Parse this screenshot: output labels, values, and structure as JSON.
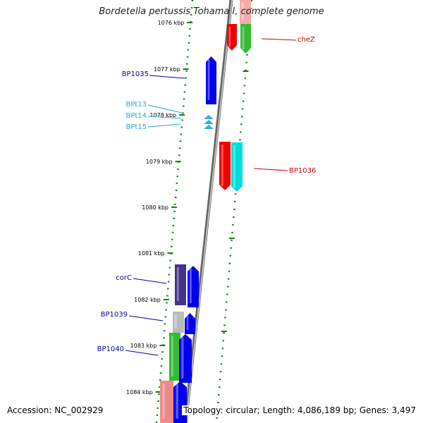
{
  "title": "Bordetella pertussis Tohama I, complete genome",
  "footer": {
    "accession": "Accession: NC_002929",
    "summary": "Topology: circular; Length: 4,086,189 bp; Genes: 3,497"
  },
  "map": {
    "ticks": [
      "1076 kbp",
      "1077 kbp",
      "1078 kbp",
      "1079 kbp",
      "1080 kbp",
      "1081 kbp",
      "1082 kbp",
      "1083 kbp",
      "1084 kbp"
    ],
    "labels": [
      {
        "text": "cheZ",
        "color": "#cc0000"
      },
      {
        "text": "BP1035",
        "color": "#0000aa"
      },
      {
        "text": "BPt13",
        "color": "#22aadd"
      },
      {
        "text": "BPt14",
        "color": "#22aadd"
      },
      {
        "text": "BPt15",
        "color": "#22aadd"
      },
      {
        "text": "BP1036",
        "color": "#cc0000"
      },
      {
        "text": "corC",
        "color": "#0000aa"
      },
      {
        "text": "BP1039",
        "color": "#0000aa"
      },
      {
        "text": "BP1040",
        "color": "#0000aa"
      }
    ],
    "colors": {
      "backbone": "#888888",
      "tick_marks": "#1a7a1a",
      "red": "#ee0000",
      "blue": "#0000ee",
      "cyan": "#00dddd",
      "green": "#33bb33",
      "purple": "#443388",
      "gray": "#bbbbbb",
      "pink": "#ee8888",
      "light_blue": "#33aaee"
    }
  }
}
